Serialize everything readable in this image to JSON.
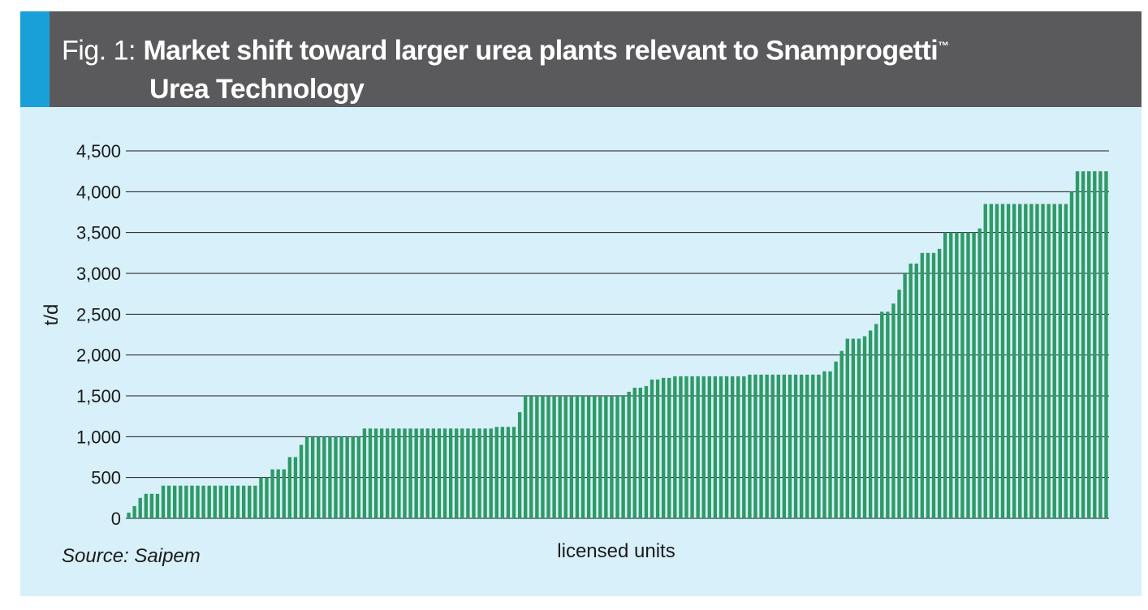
{
  "header": {
    "prefix": "Fig. 1:",
    "title_line1": "Market shift toward larger urea plants relevant to Snamprogetti",
    "trademark": "™",
    "title_line2": "Urea Technology"
  },
  "source": "Source: Saipem",
  "colors": {
    "header_bg": "#5a5a5c",
    "header_accent": "#1aa0d8",
    "panel_bg": "#d8f0f9",
    "bar": "#2e9a67",
    "grid": "#1a1a1a"
  },
  "chart_data": {
    "type": "bar",
    "xlabel": "licensed units",
    "ylabel": "t/d",
    "ylim": [
      0,
      4500
    ],
    "yticks": [
      0,
      500,
      1000,
      1500,
      2000,
      2500,
      3000,
      3500,
      4000,
      4500
    ],
    "ytick_labels": [
      "0",
      "500",
      "1,000",
      "1,500",
      "2,000",
      "2,500",
      "3,000",
      "3,500",
      "4,000",
      "4,500"
    ],
    "grid": true,
    "values": [
      70,
      150,
      250,
      300,
      300,
      300,
      400,
      400,
      400,
      400,
      400,
      400,
      400,
      400,
      400,
      400,
      400,
      400,
      400,
      400,
      400,
      400,
      400,
      500,
      500,
      600,
      600,
      600,
      750,
      750,
      900,
      1000,
      1000,
      1000,
      1000,
      1000,
      1000,
      1000,
      1000,
      1000,
      1000,
      1100,
      1100,
      1100,
      1100,
      1100,
      1100,
      1100,
      1100,
      1100,
      1100,
      1100,
      1100,
      1100,
      1100,
      1100,
      1100,
      1100,
      1100,
      1100,
      1100,
      1100,
      1100,
      1100,
      1120,
      1120,
      1120,
      1120,
      1300,
      1500,
      1500,
      1500,
      1500,
      1500,
      1500,
      1500,
      1500,
      1500,
      1500,
      1500,
      1500,
      1500,
      1500,
      1500,
      1500,
      1500,
      1500,
      1550,
      1600,
      1600,
      1620,
      1700,
      1700,
      1720,
      1720,
      1740,
      1740,
      1740,
      1740,
      1740,
      1740,
      1740,
      1740,
      1740,
      1740,
      1740,
      1740,
      1740,
      1760,
      1760,
      1760,
      1760,
      1760,
      1760,
      1760,
      1760,
      1760,
      1760,
      1760,
      1760,
      1760,
      1800,
      1800,
      1920,
      2050,
      2200,
      2200,
      2200,
      2230,
      2300,
      2380,
      2530,
      2530,
      2630,
      2800,
      3000,
      3120,
      3120,
      3250,
      3250,
      3250,
      3300,
      3500,
      3500,
      3500,
      3500,
      3500,
      3500,
      3550,
      3850,
      3850,
      3850,
      3850,
      3850,
      3850,
      3850,
      3850,
      3850,
      3850,
      3850,
      3850,
      3850,
      3850,
      3850,
      4000,
      4250,
      4250,
      4250,
      4250,
      4250,
      4250
    ]
  }
}
